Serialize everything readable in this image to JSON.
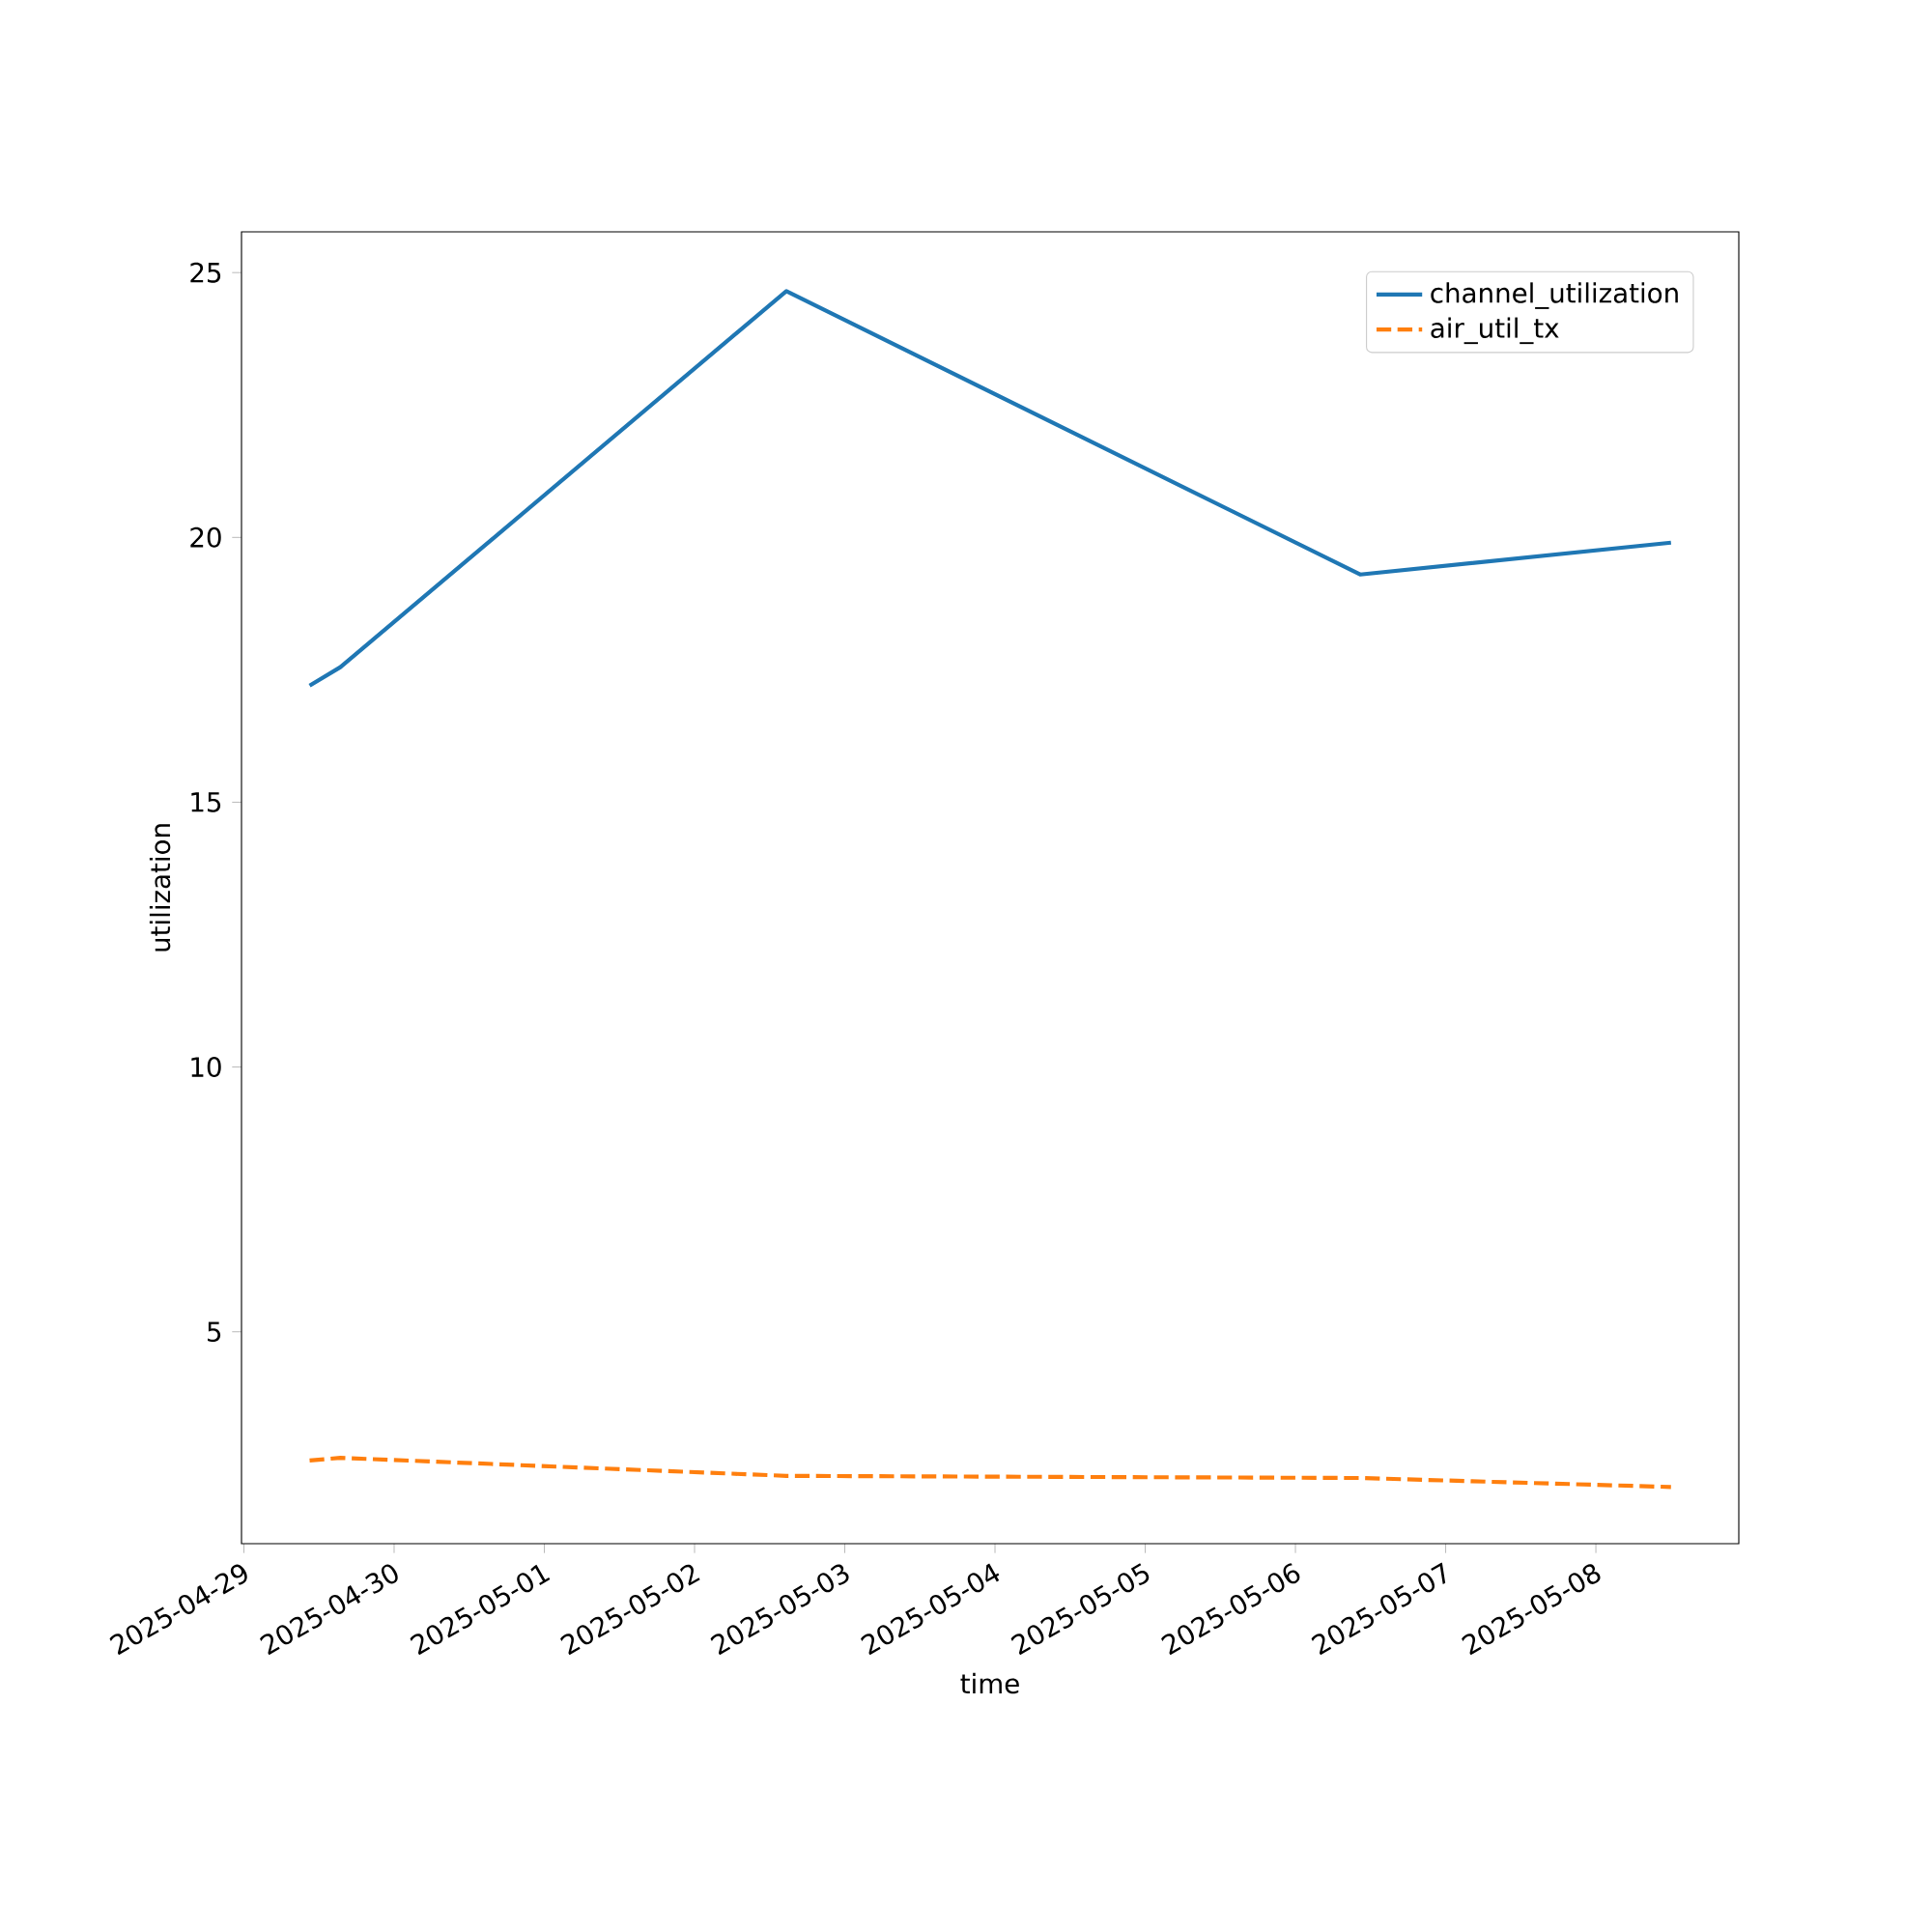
{
  "chart_data": {
    "type": "line",
    "xlabel": "time",
    "ylabel": "utilization",
    "x": [
      "2025-04-29T10:30",
      "2025-04-29T15:25",
      "2025-05-02T14:40",
      "2025-05-06T10:20",
      "2025-05-08T12:00"
    ],
    "series": [
      {
        "name": "channel_utilization",
        "color": "#1f77b4",
        "line_style": "solid",
        "values": [
          17.2,
          17.55,
          24.65,
          19.3,
          19.9
        ]
      },
      {
        "name": "air_util_tx",
        "color": "#ff7f0e",
        "line_style": "dashed",
        "values": [
          2.57,
          2.62,
          2.28,
          2.24,
          2.07
        ]
      }
    ],
    "xlim": [
      "2025-04-28T23:37",
      "2025-05-08T22:50"
    ],
    "xticks": [
      "2025-04-29",
      "2025-04-30",
      "2025-05-01",
      "2025-05-02",
      "2025-05-03",
      "2025-05-04",
      "2025-05-05",
      "2025-05-06",
      "2025-05-07",
      "2025-05-08"
    ],
    "ylim": [
      1.0,
      25.77
    ],
    "yticks": [
      5,
      10,
      15,
      20,
      25
    ],
    "legend": "top right",
    "grid": false,
    "marker": "none"
  }
}
